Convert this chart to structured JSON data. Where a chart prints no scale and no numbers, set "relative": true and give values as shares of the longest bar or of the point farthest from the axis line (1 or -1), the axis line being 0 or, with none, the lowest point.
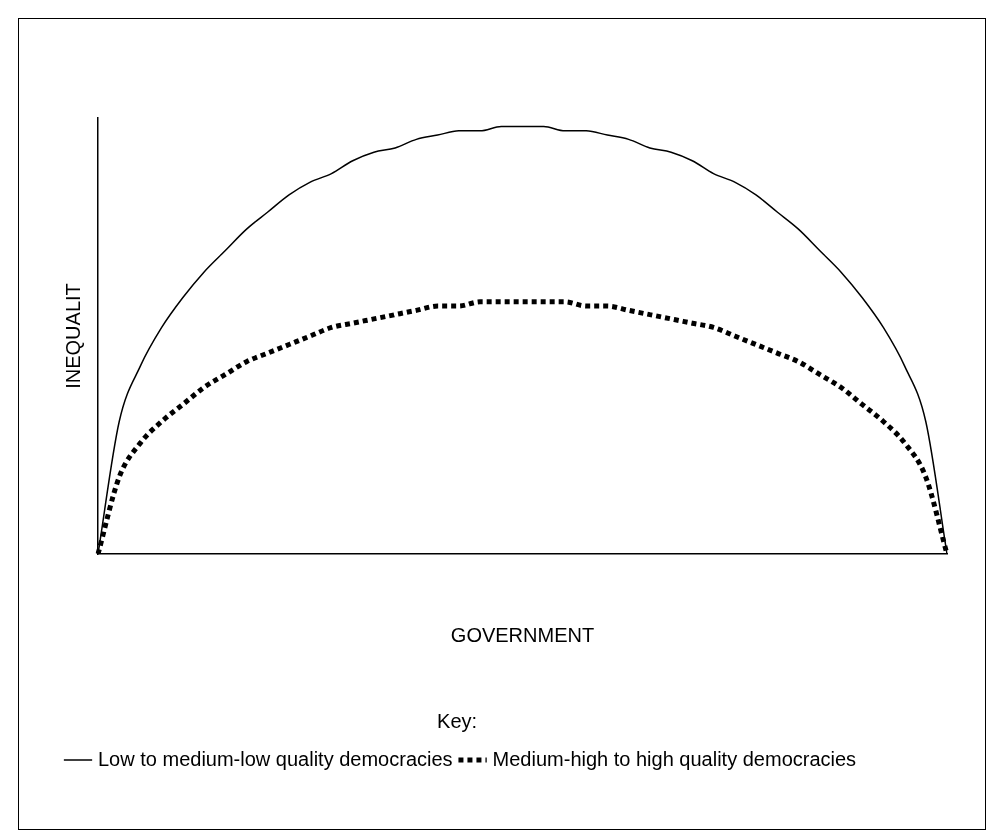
{
  "chart_data": {
    "type": "line",
    "relative": true,
    "xlabel": "GOVERNMENT",
    "ylabel": "INEQUALIT",
    "legend_title": "Key:",
    "legend": "bottom left",
    "grid": false,
    "marker": "none",
    "categories": [
      null,
      null,
      null,
      null,
      null,
      null,
      null,
      null,
      null,
      null,
      null,
      null,
      null,
      null,
      null,
      null,
      null,
      null,
      null,
      null,
      null,
      null,
      null,
      null,
      null,
      null,
      null,
      null,
      null,
      null,
      null,
      null,
      null,
      null,
      null,
      null,
      null,
      null,
      null,
      null,
      null
    ],
    "series": [
      {
        "name": "Low to medium-low quality democracies",
        "color": "#000000",
        "line_style": "solid",
        "values": [
          0,
          0.31,
          0.44,
          0.53,
          0.6,
          0.66,
          0.71,
          0.76,
          0.8,
          0.84,
          0.87,
          0.89,
          0.92,
          0.94,
          0.95,
          0.97,
          0.98,
          0.99,
          0.99,
          1,
          1,
          1,
          0.99,
          0.99,
          0.98,
          0.97,
          0.95,
          0.94,
          0.92,
          0.89,
          0.87,
          0.84,
          0.8,
          0.76,
          0.71,
          0.66,
          0.6,
          0.53,
          0.44,
          0.31,
          0
        ]
      },
      {
        "name": "Medium-high to high quality democracies",
        "color": "#000000",
        "line_style": "dotted",
        "values": [
          0,
          0.18,
          0.26,
          0.31,
          0.35,
          0.39,
          0.42,
          0.45,
          0.47,
          0.49,
          0.51,
          0.53,
          0.54,
          0.55,
          0.56,
          0.57,
          0.58,
          0.58,
          0.59,
          0.59,
          0.59,
          0.59,
          0.59,
          0.58,
          0.58,
          0.57,
          0.56,
          0.55,
          0.54,
          0.53,
          0.51,
          0.49,
          0.47,
          0.45,
          0.42,
          0.39,
          0.35,
          0.31,
          0.26,
          0.18,
          0
        ]
      }
    ]
  }
}
